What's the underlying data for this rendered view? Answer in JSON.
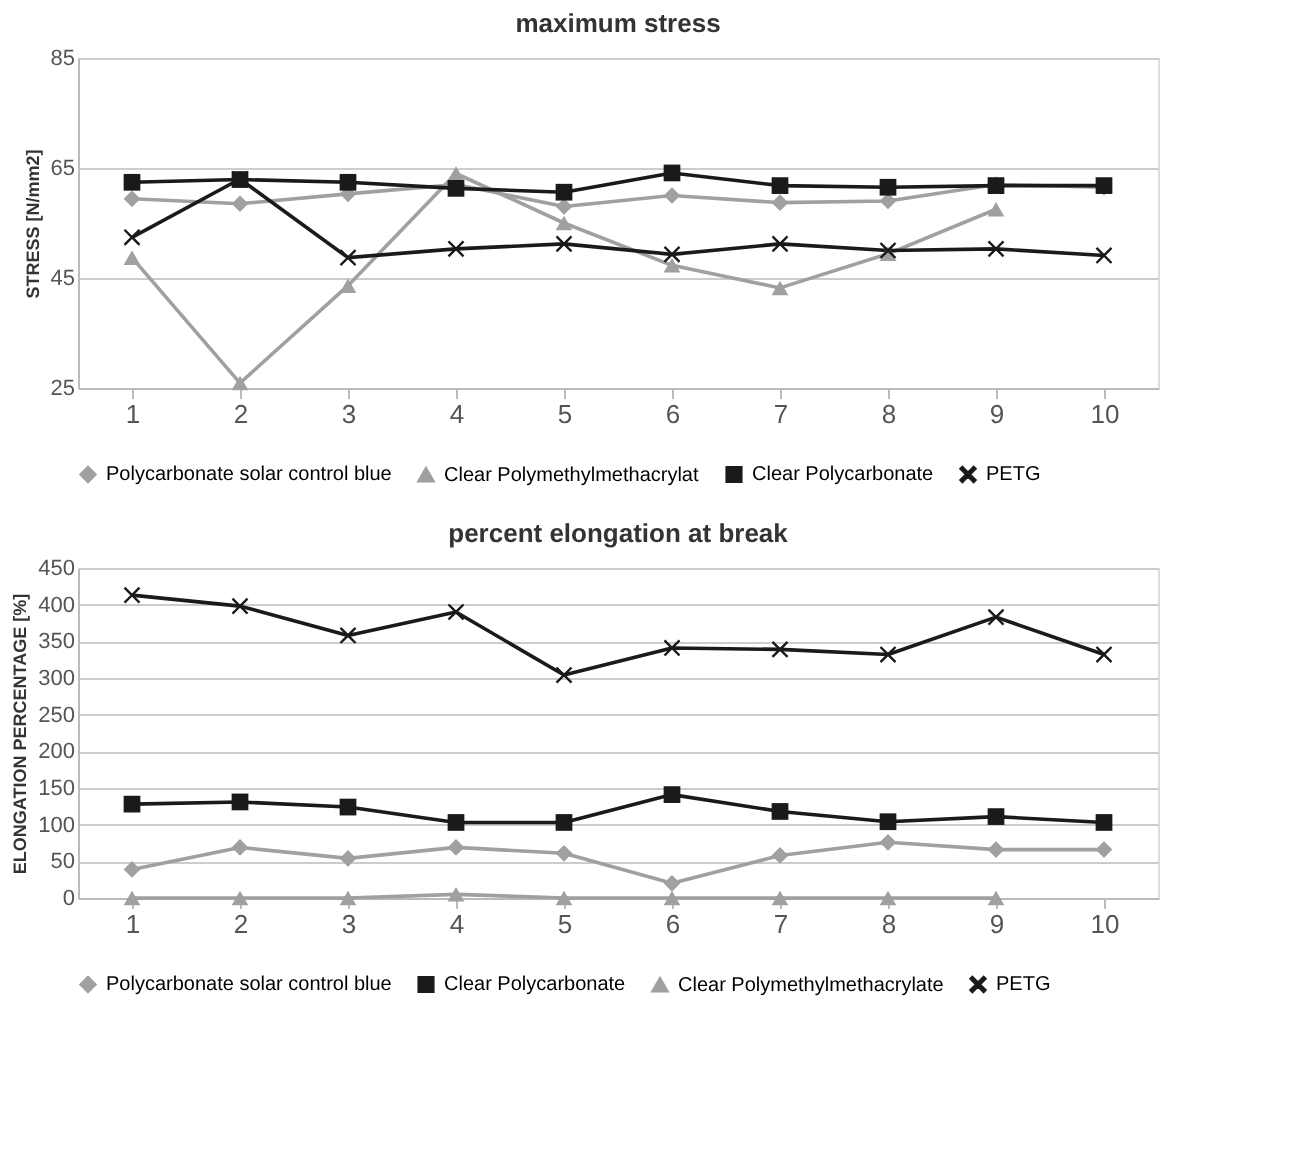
{
  "chart_data": [
    {
      "type": "line",
      "title": "maximum stress",
      "ylabel": "STRESS [N/mm2]",
      "categories": [
        "1",
        "2",
        "3",
        "4",
        "5",
        "6",
        "7",
        "8",
        "9",
        "10"
      ],
      "ylim": [
        25,
        85
      ],
      "yticks": [
        25,
        45,
        65,
        85
      ],
      "grid": "y",
      "legend": "bottom",
      "series": [
        {
          "name": "Polycarbonate solar control blue",
          "color": "#a0a0a0",
          "marker": "diamond",
          "values": [
            59.4,
            58.5,
            60.3,
            62,
            58,
            60,
            58.7,
            59,
            62,
            61.5
          ]
        },
        {
          "name": "Clear Polymethylmethacrylat",
          "color": "#a0a0a0",
          "marker": "triangle",
          "values": [
            48.7,
            25.9,
            43.6,
            64,
            55,
            47.3,
            43.2,
            49.4,
            57.5,
            null
          ]
        },
        {
          "name": "Clear Polycarbonate",
          "color": "#1a1a1a",
          "marker": "square",
          "values": [
            62.4,
            62.9,
            62.4,
            61.3,
            60.6,
            64.1,
            61.8,
            61.5,
            61.8,
            61.8
          ]
        },
        {
          "name": "PETG",
          "color": "#1a1a1a",
          "marker": "cross",
          "values": [
            52.4,
            63,
            48.7,
            50.3,
            51.2,
            49.3,
            51.2,
            50,
            50.3,
            49.1
          ]
        }
      ]
    },
    {
      "type": "line",
      "title": "percent elongation at break",
      "ylabel": "ELONGATION PERCENTAGE [%]",
      "categories": [
        "1",
        "2",
        "3",
        "4",
        "5",
        "6",
        "7",
        "8",
        "9",
        "10"
      ],
      "ylim": [
        0,
        450
      ],
      "yticks": [
        0,
        50,
        100,
        150,
        200,
        250,
        300,
        350,
        400,
        450
      ],
      "grid": "y",
      "legend": "bottom",
      "series": [
        {
          "name": "Polycarbonate solar control blue",
          "color": "#a0a0a0",
          "marker": "diamond",
          "values": [
            39,
            69,
            54,
            69,
            61,
            20,
            58,
            76,
            66,
            66
          ]
        },
        {
          "name": "Clear Polycarbonate",
          "color": "#1a1a1a",
          "marker": "square",
          "values": [
            128,
            131,
            124,
            103,
            103,
            141,
            118,
            104,
            111,
            103
          ]
        },
        {
          "name": "Clear Polymethylmethacrylate",
          "color": "#a0a0a0",
          "marker": "triangle",
          "values": [
            0,
            0,
            0,
            5,
            0,
            0,
            0,
            0,
            0,
            null
          ]
        },
        {
          "name": "PETG",
          "color": "#1a1a1a",
          "marker": "cross",
          "values": [
            413,
            398,
            358,
            390,
            304,
            341,
            339,
            332,
            383,
            332
          ]
        }
      ]
    }
  ]
}
